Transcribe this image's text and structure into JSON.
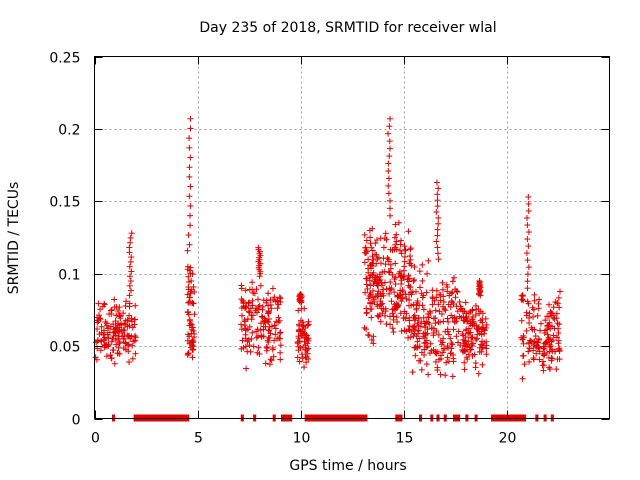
{
  "chart_data": {
    "type": "scatter",
    "title": "Day 235 of 2018, SRMTID for receiver wlal",
    "xlabel": "GPS time / hours",
    "ylabel": "SRMTID / TECUs",
    "xlim": [
      0,
      25
    ],
    "ylim": [
      0,
      0.25
    ],
    "x_ticks": [
      0,
      5,
      10,
      15,
      20
    ],
    "x_tick_labels": [
      "0",
      "5",
      "10",
      "15",
      "20"
    ],
    "y_ticks": [
      0,
      0.05,
      0.1,
      0.15,
      0.2,
      0.25
    ],
    "y_tick_labels": [
      "0",
      "0.05",
      "0.1",
      "0.15",
      "0.2",
      "0.25"
    ],
    "grid": true,
    "marker": "+",
    "color": "#e00000",
    "clusters": [
      {
        "x_start": 0.0,
        "x_end": 2.0,
        "y_low": 0.035,
        "y_high": 0.085,
        "peak_x": 1.75,
        "peak_y": 0.128,
        "count": 150
      },
      {
        "x_start": 4.5,
        "x_end": 4.85,
        "y_low": 0.03,
        "y_high": 0.12,
        "peak_x": 4.6,
        "peak_y": 0.207,
        "count": 60
      },
      {
        "x_start": 7.1,
        "x_end": 9.05,
        "y_low": 0.033,
        "y_high": 0.1,
        "peak_x": 8.0,
        "peak_y": 0.118,
        "count": 150
      },
      {
        "x_start": 9.85,
        "x_end": 10.4,
        "y_low": 0.035,
        "y_high": 0.08,
        "peak_x": 10.0,
        "peak_y": 0.086,
        "count": 60
      },
      {
        "x_start": 13.1,
        "x_end": 15.4,
        "y_low": 0.045,
        "y_high": 0.14,
        "peak_x": 14.3,
        "peak_y": 0.207,
        "count": 250
      },
      {
        "x_start": 15.4,
        "x_end": 17.8,
        "y_low": 0.025,
        "y_high": 0.11,
        "peak_x": 16.65,
        "peak_y": 0.163,
        "count": 200
      },
      {
        "x_start": 17.8,
        "x_end": 19.05,
        "y_low": 0.03,
        "y_high": 0.085,
        "peak_x": 18.7,
        "peak_y": 0.095,
        "count": 120
      },
      {
        "x_start": 20.7,
        "x_end": 22.6,
        "y_low": 0.025,
        "y_high": 0.09,
        "peak_x": 21.05,
        "peak_y": 0.153,
        "count": 150
      }
    ],
    "zero_markers": [
      [
        0.85,
        1.0
      ],
      [
        1.9,
        4.6
      ],
      [
        7.1,
        7.25
      ],
      [
        7.7,
        7.85
      ],
      [
        8.65,
        8.8
      ],
      [
        9.05,
        9.6
      ],
      [
        10.2,
        13.25
      ],
      [
        14.6,
        14.95
      ],
      [
        15.75,
        15.9
      ],
      [
        16.3,
        16.4
      ],
      [
        16.6,
        16.75
      ],
      [
        16.95,
        17.1
      ],
      [
        17.4,
        17.75
      ],
      [
        18.0,
        18.15
      ],
      [
        18.45,
        18.6
      ],
      [
        19.25,
        20.95
      ],
      [
        21.4,
        21.55
      ],
      [
        21.8,
        21.95
      ],
      [
        22.15,
        22.3
      ]
    ]
  }
}
